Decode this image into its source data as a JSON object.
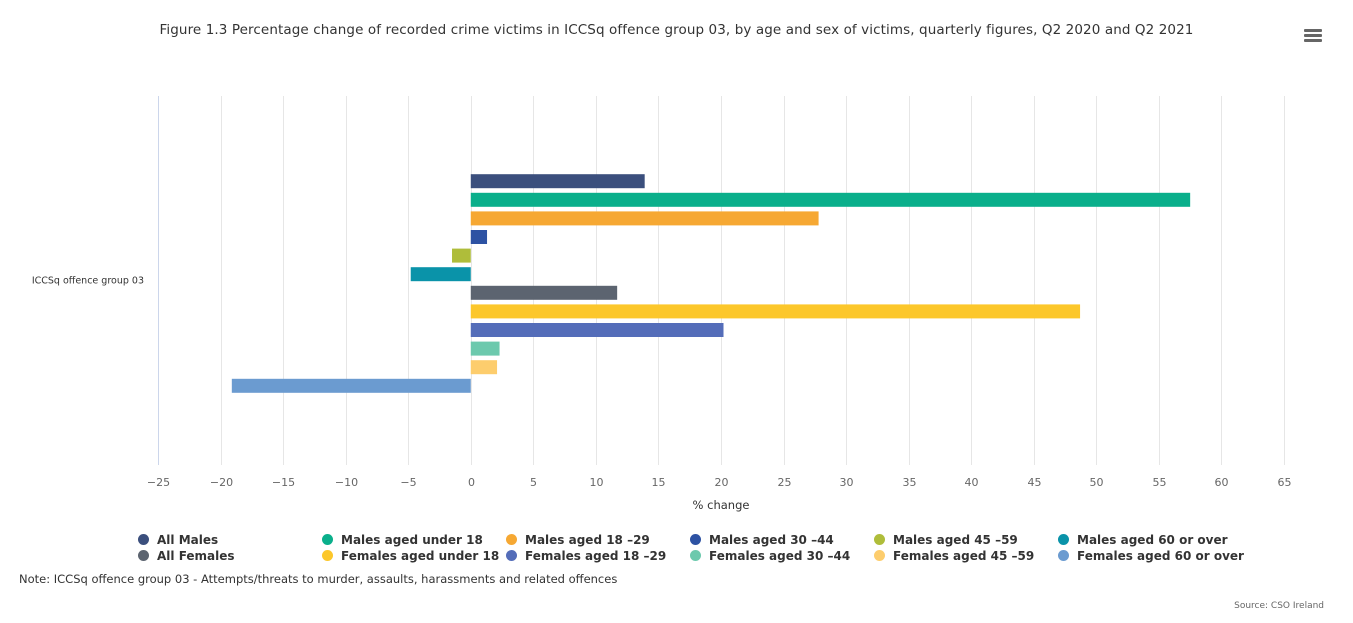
{
  "title": "Figure 1.3 Percentage change of recorded crime victims in ICCSq offence group 03, by age and sex of victims, quarterly figures, Q2 2020 and Q2 2021",
  "menu_icon": "hamburger-menu-icon",
  "note": "Note: ICCSq offence group 03 - Attempts/threats to murder, assaults, harassments and related offences",
  "source": "Source: CSO Ireland",
  "chart_data": {
    "type": "bar",
    "orientation": "horizontal",
    "categories": [
      "ICCSq offence group 03"
    ],
    "xlabel": "% change",
    "ylabel": "",
    "xlim": [
      -25,
      65
    ],
    "xticks": [
      "-25",
      "-20",
      "-15",
      "-10",
      "-5",
      "0",
      "5",
      "10",
      "15",
      "20",
      "25",
      "30",
      "35",
      "40",
      "45",
      "50",
      "55",
      "60",
      "65"
    ],
    "grid": true,
    "legend_position": "bottom",
    "series": [
      {
        "name": "All Males",
        "color": "#3b4f7d",
        "values": [
          13.9
        ]
      },
      {
        "name": "Males aged under 18",
        "color": "#0aaf8b",
        "values": [
          57.5
        ]
      },
      {
        "name": "Males aged 18 -29",
        "color": "#f6a833",
        "values": [
          27.8
        ]
      },
      {
        "name": "Males aged 30 -44",
        "color": "#2d52a3",
        "values": [
          1.3
        ]
      },
      {
        "name": "Males aged 45 -59",
        "color": "#afbd3a",
        "values": [
          -1.5
        ]
      },
      {
        "name": "Males aged 60 or over",
        "color": "#0a93a9",
        "values": [
          -4.8
        ]
      },
      {
        "name": "All Females",
        "color": "#5c6470",
        "values": [
          11.7
        ]
      },
      {
        "name": "Females aged under 18",
        "color": "#fcc72b",
        "values": [
          48.7
        ]
      },
      {
        "name": "Females aged 18 -29",
        "color": "#546db9",
        "values": [
          20.2
        ]
      },
      {
        "name": "Females aged 30 -44",
        "color": "#6cc9ad",
        "values": [
          2.3
        ]
      },
      {
        "name": "Females aged 45 -59",
        "color": "#fdcd6d",
        "values": [
          2.1
        ]
      },
      {
        "name": "Females aged 60 or over",
        "color": "#6b9bd0",
        "values": [
          -19.1
        ]
      }
    ]
  }
}
